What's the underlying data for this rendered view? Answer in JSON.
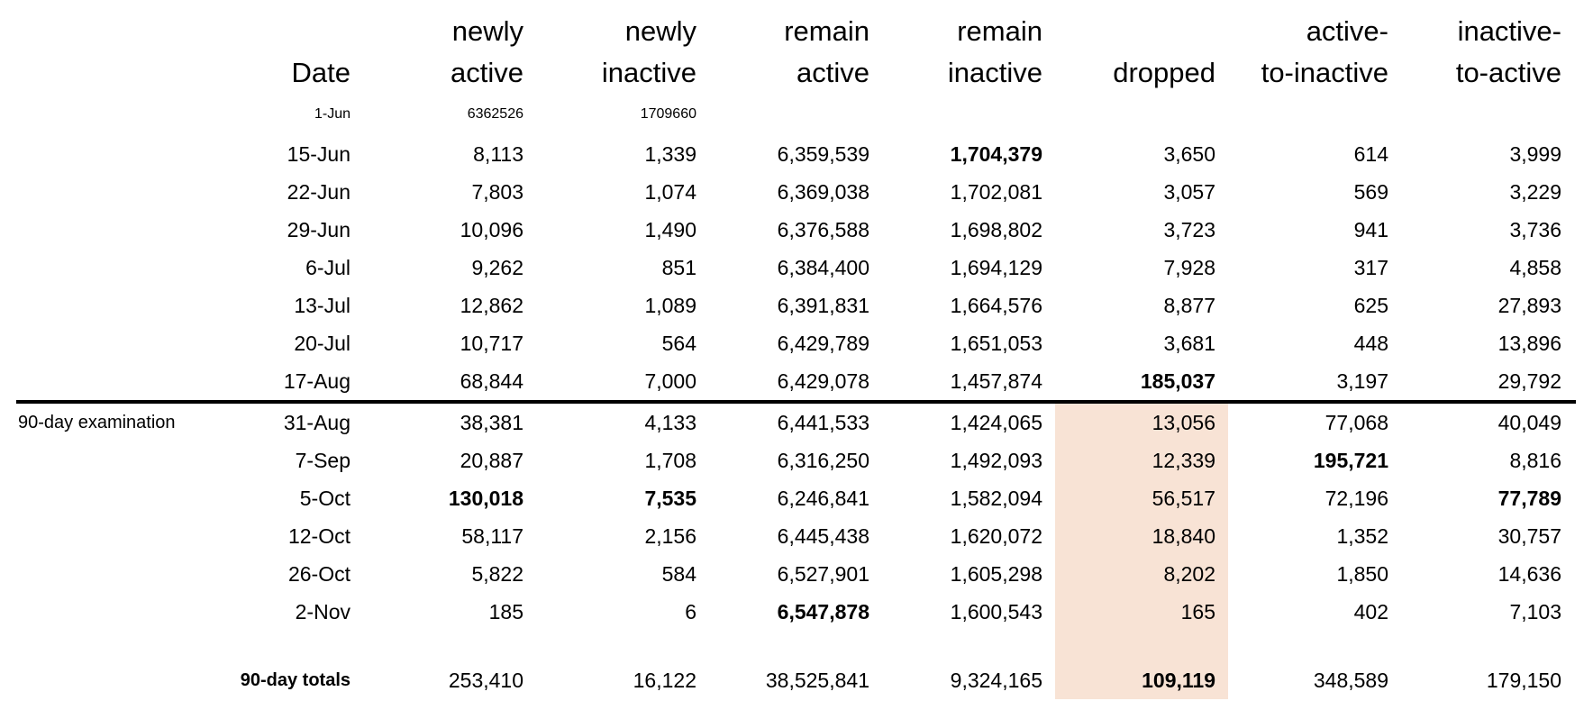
{
  "table": {
    "header_line1": [
      "",
      "",
      "newly",
      "newly",
      "remain",
      "remain",
      "",
      "active-",
      "inactive-"
    ],
    "header_line2": [
      "",
      "Date",
      "active",
      "inactive",
      "active",
      "inactive",
      "dropped",
      "to-inactive",
      "to-active"
    ],
    "examination_label": "90-day examination",
    "pre_rows": [
      {
        "date": "1-Jun",
        "small": true,
        "values": [
          "6362526",
          "1709660",
          "",
          "",
          "",
          "",
          ""
        ],
        "bold": []
      },
      {
        "date": "15-Jun",
        "values": [
          "8,113",
          "1,339",
          "6,359,539",
          "1,704,379",
          "3,650",
          "614",
          "3,999"
        ],
        "bold": [
          3
        ]
      },
      {
        "date": "22-Jun",
        "values": [
          "7,803",
          "1,074",
          "6,369,038",
          "1,702,081",
          "3,057",
          "569",
          "3,229"
        ],
        "bold": []
      },
      {
        "date": "29-Jun",
        "values": [
          "10,096",
          "1,490",
          "6,376,588",
          "1,698,802",
          "3,723",
          "941",
          "3,736"
        ],
        "bold": []
      },
      {
        "date": "6-Jul",
        "values": [
          "9,262",
          "851",
          "6,384,400",
          "1,694,129",
          "7,928",
          "317",
          "4,858"
        ],
        "bold": []
      },
      {
        "date": "13-Jul",
        "values": [
          "12,862",
          "1,089",
          "6,391,831",
          "1,664,576",
          "8,877",
          "625",
          "27,893"
        ],
        "bold": []
      },
      {
        "date": "20-Jul",
        "values": [
          "10,717",
          "564",
          "6,429,789",
          "1,651,053",
          "3,681",
          "448",
          "13,896"
        ],
        "bold": []
      },
      {
        "date": "17-Aug",
        "values": [
          "68,844",
          "7,000",
          "6,429,078",
          "1,457,874",
          "185,037",
          "3,197",
          "29,792"
        ],
        "bold": [
          4
        ]
      }
    ],
    "exam_rows": [
      {
        "date": "31-Aug",
        "has_section_label": true,
        "values": [
          "38,381",
          "4,133",
          "6,441,533",
          "1,424,065",
          "13,056",
          "77,068",
          "40,049"
        ],
        "bold": []
      },
      {
        "date": "7-Sep",
        "values": [
          "20,887",
          "1,708",
          "6,316,250",
          "1,492,093",
          "12,339",
          "195,721",
          "8,816"
        ],
        "bold": [
          5
        ]
      },
      {
        "date": "5-Oct",
        "values": [
          "130,018",
          "7,535",
          "6,246,841",
          "1,582,094",
          "56,517",
          "72,196",
          "77,789"
        ],
        "bold": [
          0,
          1,
          6
        ]
      },
      {
        "date": "12-Oct",
        "values": [
          "58,117",
          "2,156",
          "6,445,438",
          "1,620,072",
          "18,840",
          "1,352",
          "30,757"
        ],
        "bold": []
      },
      {
        "date": "26-Oct",
        "values": [
          "5,822",
          "584",
          "6,527,901",
          "1,605,298",
          "8,202",
          "1,850",
          "14,636"
        ],
        "bold": []
      },
      {
        "date": "2-Nov",
        "values": [
          "185",
          "6",
          "6,547,878",
          "1,600,543",
          "165",
          "402",
          "7,103"
        ],
        "bold": [
          2
        ]
      }
    ],
    "totals": {
      "label": "90-day totals",
      "values": [
        "253,410",
        "16,122",
        "38,525,841",
        "9,324,165",
        "109,119",
        "348,589",
        "179,150"
      ],
      "bold": [
        4
      ]
    },
    "highlight": {
      "color": "#f8e3d5",
      "column_header": "dropped",
      "column_value_index": 4,
      "row_span": "31-Aug through 90-day totals including blank spacer row"
    },
    "divider_color": "#000000"
  }
}
